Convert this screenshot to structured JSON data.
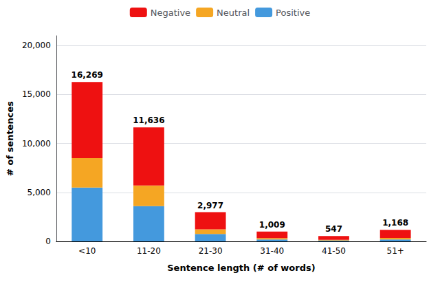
{
  "chart_data": {
    "type": "bar",
    "stacked": true,
    "categories": [
      "<10",
      "11-20",
      "21-30",
      "31-40",
      "41-50",
      "51+"
    ],
    "series": [
      {
        "name": "Positive",
        "color": "#4499dd",
        "values": [
          5500,
          3600,
          750,
          195,
          90,
          200
        ]
      },
      {
        "name": "Neutral",
        "color": "#f5a623",
        "values": [
          3000,
          2100,
          480,
          145,
          70,
          145
        ]
      },
      {
        "name": "Negative",
        "color": "#ee1111",
        "values": [
          7769,
          5936,
          1747,
          669,
          387,
          823
        ]
      }
    ],
    "annotations": [
      {
        "category": "<10",
        "value": 16269,
        "text": "16,269"
      },
      {
        "category": "11-20",
        "value": 11636,
        "text": "11,636"
      },
      {
        "category": "21-30",
        "value": 2977,
        "text": "2,977"
      },
      {
        "category": "31-40",
        "value": 1009,
        "text": "1,009"
      },
      {
        "category": "41-50",
        "value": 547,
        "text": "547"
      },
      {
        "category": "51+",
        "value": 1168,
        "text": "1,168"
      }
    ],
    "xlabel": "Sentence length (# of words)",
    "ylabel": "# of sentences",
    "ylim": [
      0,
      21000
    ],
    "yticks": [
      0,
      {
        "value": 5000,
        "label": "5,000"
      },
      {
        "value": 10000,
        "label": "10,000"
      },
      {
        "value": 15000,
        "label": "15,000"
      },
      {
        "value": 20000,
        "label": "20,000"
      }
    ],
    "grid": true,
    "legend": "top"
  }
}
